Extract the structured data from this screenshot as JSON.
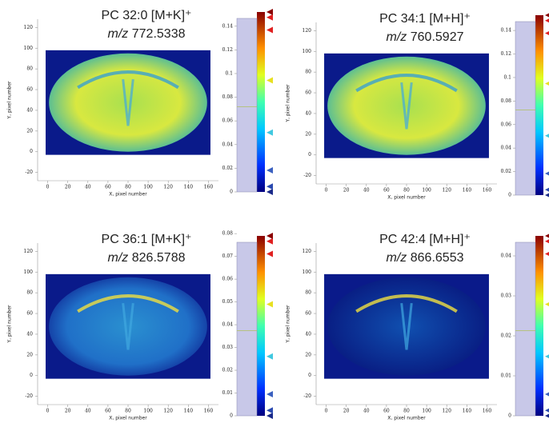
{
  "chart_data": [
    {
      "type": "heatmap",
      "title": "PC 32:0 [M+K]⁺",
      "subtitle_prefix": "m/z",
      "subtitle": "772.5338",
      "xlabel": "X, pixel number",
      "ylabel": "Y, pixel number",
      "xlim": [
        -10,
        170
      ],
      "xticks": [
        0,
        20,
        40,
        60,
        80,
        100,
        120,
        140,
        160
      ],
      "ylim": [
        -28,
        128
      ],
      "yticks": [
        -20,
        0,
        20,
        40,
        60,
        80,
        100,
        120
      ],
      "zlim": [
        0,
        0.152
      ],
      "zticks": [
        0,
        0.02,
        0.04,
        0.06,
        0.08,
        0.1,
        0.12,
        0.14
      ]
    },
    {
      "type": "heatmap",
      "title": "PC 34:1 [M+H]⁺",
      "subtitle_prefix": "m/z",
      "subtitle": "760.5927",
      "xlabel": "X, pixel number",
      "ylabel": "Y, pixel number",
      "xlim": [
        -10,
        170
      ],
      "xticks": [
        0,
        20,
        40,
        60,
        80,
        100,
        120,
        140,
        160
      ],
      "ylim": [
        -28,
        128
      ],
      "yticks": [
        -20,
        0,
        20,
        40,
        60,
        80,
        100,
        120
      ],
      "zlim": [
        0,
        0.153
      ],
      "zticks": [
        0,
        0.02,
        0.04,
        0.06,
        0.08,
        0.1,
        0.12,
        0.14
      ]
    },
    {
      "type": "heatmap",
      "title": "PC 36:1 [M+K]⁺",
      "subtitle_prefix": "m/z",
      "subtitle": "826.5788",
      "xlabel": "X, pixel number",
      "ylabel": "Y, pixel number",
      "xlim": [
        -10,
        170
      ],
      "xticks": [
        0,
        20,
        40,
        60,
        80,
        100,
        120,
        140,
        160
      ],
      "ylim": [
        -28,
        128
      ],
      "yticks": [
        -20,
        0,
        20,
        40,
        60,
        80,
        100,
        120
      ],
      "zlim": [
        0,
        0.079
      ],
      "zticks": [
        0,
        0.01,
        0.02,
        0.03,
        0.04,
        0.05,
        0.06,
        0.07,
        0.08
      ]
    },
    {
      "type": "heatmap",
      "title": "PC 42:4 [M+H]⁺",
      "subtitle_prefix": "m/z",
      "subtitle": "866.6553",
      "xlabel": "X, pixel number",
      "ylabel": "Y, pixel number",
      "xlim": [
        -10,
        170
      ],
      "xticks": [
        0,
        20,
        40,
        60,
        80,
        100,
        120,
        140,
        160
      ],
      "ylim": [
        -28,
        128
      ],
      "yticks": [
        -20,
        0,
        20,
        40,
        60,
        80,
        100,
        120
      ],
      "zlim": [
        0,
        0.045
      ],
      "zticks": [
        0,
        0.01,
        0.02,
        0.03,
        0.04
      ]
    }
  ]
}
